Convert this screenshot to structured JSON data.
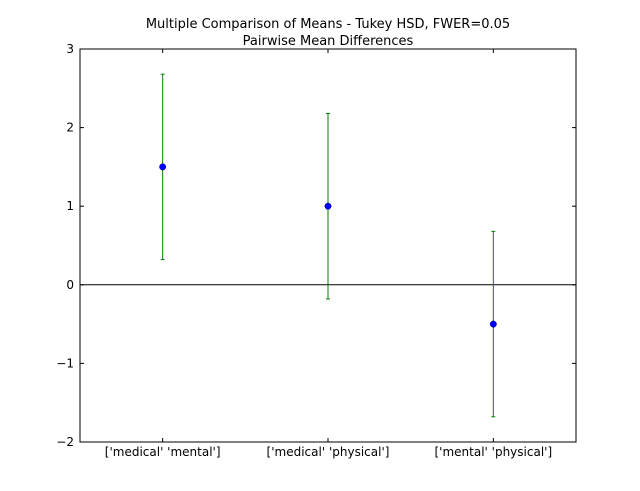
{
  "chart_data": {
    "type": "scatter",
    "title": "Multiple Comparison of Means - Tukey HSD, FWER=0.05",
    "subtitle": "Pairwise Mean Differences",
    "categories": [
      "['medical' 'mental']",
      "['medical' 'physical']",
      "['mental' 'physical']"
    ],
    "series": [
      {
        "values": [
          1.5,
          1.0,
          -0.5
        ],
        "lower": [
          0.32,
          -0.18,
          -1.68
        ],
        "upper": [
          2.68,
          2.18,
          0.68
        ]
      }
    ],
    "reference_line": 0,
    "ylim": [
      -2,
      3
    ],
    "yticks": [
      -2,
      -1,
      0,
      1,
      2,
      3
    ],
    "ytick_labels": [
      "−2",
      "−1",
      "0",
      "1",
      "2",
      "3"
    ],
    "xlim": [
      -0.5,
      2.5
    ],
    "grid": false,
    "colors": {
      "point": "#0000ff",
      "errorbar": "#008000",
      "reference": "#000000",
      "axes": "#000000"
    }
  }
}
